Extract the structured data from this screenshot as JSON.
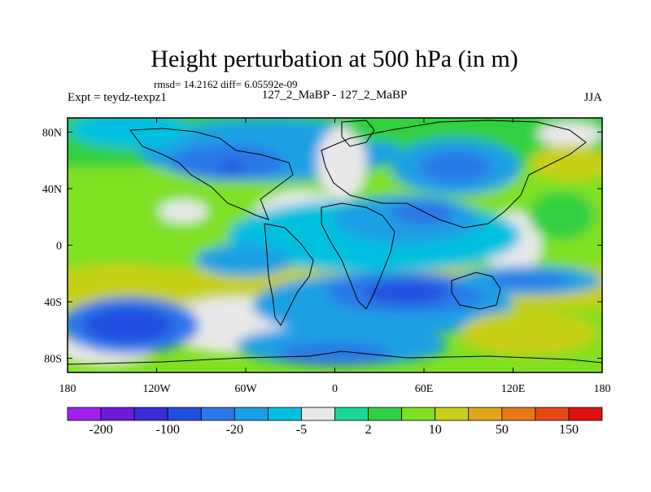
{
  "chart_data": {
    "type": "heatmap",
    "title": "Height perturbation at 500 hPa (in m)",
    "stats_text": "rmsd= 14.2162 diff= 6.05592e-09",
    "left_label": "Expt = teydz-texpz1",
    "center_label": "127_2_MaBP - 127_2_MaBP",
    "right_label": "JJA",
    "x_ticks": [
      {
        "value": -180,
        "label": "180"
      },
      {
        "value": -120,
        "label": "120W"
      },
      {
        "value": -60,
        "label": "60W"
      },
      {
        "value": 0,
        "label": "0"
      },
      {
        "value": 60,
        "label": "60E"
      },
      {
        "value": 120,
        "label": "120E"
      },
      {
        "value": 180,
        "label": "180"
      }
    ],
    "y_ticks": [
      {
        "value": 80,
        "label": "80N"
      },
      {
        "value": 40,
        "label": "40N"
      },
      {
        "value": 0,
        "label": "0"
      },
      {
        "value": -40,
        "label": "40S"
      },
      {
        "value": -80,
        "label": "80S"
      }
    ],
    "xlim": [
      -180,
      180
    ],
    "ylim": [
      -90,
      90
    ],
    "colorbar": {
      "colors": [
        "#a020f0",
        "#6a1cd8",
        "#3a2cd8",
        "#2050e0",
        "#2b78e8",
        "#1aa0e4",
        "#00c0e0",
        "#e8e8e8",
        "#18d898",
        "#30d040",
        "#80e020",
        "#c8d018",
        "#e0a818",
        "#e87818",
        "#e84818",
        "#e01010"
      ],
      "labels": [
        {
          "boundary": 1,
          "text": "-200"
        },
        {
          "boundary": 3,
          "text": "-100"
        },
        {
          "boundary": 5,
          "text": "-20"
        },
        {
          "boundary": 7,
          "text": "-5"
        },
        {
          "boundary": 9,
          "text": "2"
        },
        {
          "boundary": 11,
          "text": "10"
        },
        {
          "boundary": 13,
          "text": "50"
        },
        {
          "boundary": 15,
          "text": "150"
        }
      ]
    },
    "field_level_colors": {
      "-7": "#2050e0",
      "-6": "#2b78e8",
      "-5": "#1aa0e4",
      "-4": "#00c0e0",
      "0": "#e8e8e8",
      "2": "#18d898",
      "3": "#30d040",
      "4": "#80e020",
      "5": "#c8d018"
    }
  }
}
